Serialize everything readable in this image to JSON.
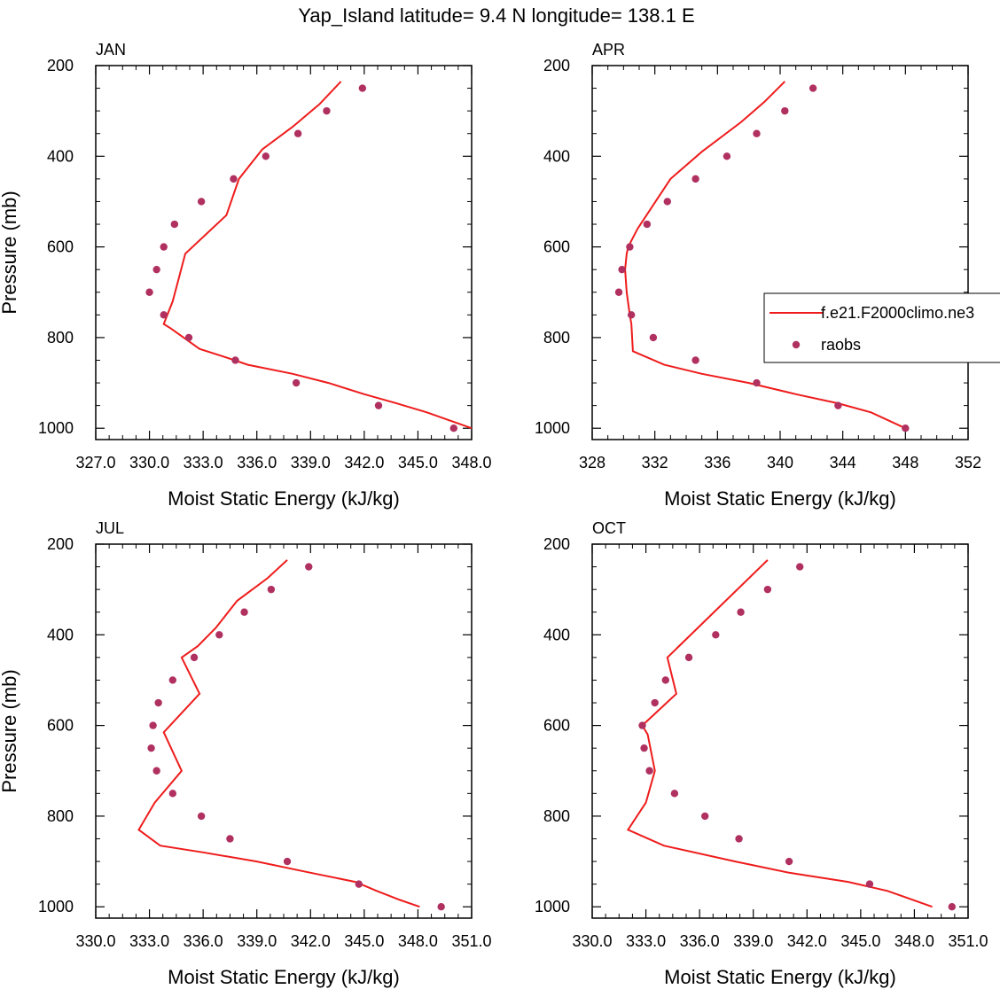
{
  "title": "Yap_Island  latitude= 9.4 N longitude= 138.1 E",
  "chart_data": [
    {
      "type": "line",
      "panel_label": "JAN",
      "xlabel": "Moist Static Energy (kJ/kg)",
      "ylabel": "Pressure (mb)",
      "xlim": [
        327,
        348
      ],
      "ylim": [
        200,
        1025
      ],
      "x_ticks": [
        "327.0",
        "330.0",
        "333.0",
        "336.0",
        "339.0",
        "342.0",
        "345.0",
        "348.0"
      ],
      "y_ticks": [
        "200",
        "400",
        "600",
        "800",
        "1000"
      ],
      "series": [
        {
          "name": "f.e21.F2000climo.ne3",
          "style": "line",
          "color": "#ee1c1c",
          "x": [
            348.0,
            345.5,
            343.8,
            342.0,
            340.0,
            338.0,
            335.5,
            334.0,
            332.8,
            331.2,
            330.8,
            331.3,
            331.6,
            332.0,
            334.3,
            335.0,
            336.3,
            338.0,
            339.5,
            340.7
          ],
          "y": [
            1000,
            965,
            945,
            925,
            900,
            880,
            860,
            840,
            825,
            780,
            770,
            720,
            675,
            615,
            530,
            450,
            385,
            335,
            285,
            235
          ]
        },
        {
          "name": "raobs",
          "style": "markers",
          "color": "#b03060",
          "x": [
            347.0,
            342.8,
            338.2,
            334.8,
            332.2,
            330.8,
            330.0,
            330.4,
            330.8,
            331.4,
            332.9,
            334.7,
            336.5,
            338.3,
            339.9,
            341.9
          ],
          "y": [
            1000,
            950,
            900,
            850,
            800,
            750,
            700,
            650,
            600,
            550,
            500,
            450,
            400,
            350,
            300,
            250
          ]
        }
      ]
    },
    {
      "type": "line",
      "panel_label": "APR",
      "xlabel": "Moist Static Energy (kJ/kg)",
      "ylabel": "",
      "xlim": [
        328,
        352
      ],
      "ylim": [
        200,
        1025
      ],
      "x_ticks": [
        "328",
        "332",
        "336",
        "340",
        "344",
        "348",
        "352"
      ],
      "y_ticks": [
        "200",
        "400",
        "600",
        "800",
        "1000"
      ],
      "series": [
        {
          "name": "f.e21.F2000climo.ne3",
          "style": "line",
          "color": "#ee1c1c",
          "x": [
            348.0,
            345.8,
            343.7,
            341.0,
            338.0,
            335.0,
            332.6,
            330.6,
            330.5,
            330.4,
            330.2,
            330.1,
            330.2,
            330.3,
            330.9,
            333.0,
            335.0,
            337.5,
            339.0,
            340.3
          ],
          "y": [
            1000,
            965,
            945,
            925,
            900,
            880,
            860,
            830,
            770,
            750,
            700,
            650,
            615,
            600,
            560,
            450,
            390,
            325,
            280,
            235
          ]
        },
        {
          "name": "raobs",
          "style": "markers",
          "color": "#b03060",
          "x": [
            348.0,
            343.7,
            338.5,
            334.6,
            331.9,
            330.5,
            329.7,
            329.9,
            330.4,
            331.5,
            332.8,
            334.6,
            336.6,
            338.5,
            340.3,
            342.1
          ],
          "y": [
            1000,
            950,
            900,
            850,
            800,
            750,
            700,
            650,
            600,
            550,
            500,
            450,
            400,
            350,
            300,
            250
          ]
        }
      ]
    },
    {
      "type": "line",
      "panel_label": "JUL",
      "xlabel": "Moist Static Energy (kJ/kg)",
      "ylabel": "Pressure (mb)",
      "xlim": [
        330,
        351
      ],
      "ylim": [
        200,
        1025
      ],
      "x_ticks": [
        "330.0",
        "333.0",
        "336.0",
        "339.0",
        "342.0",
        "345.0",
        "348.0",
        "351.0"
      ],
      "y_ticks": [
        "200",
        "400",
        "600",
        "800",
        "1000"
      ],
      "series": [
        {
          "name": "f.e21.F2000climo.ne3",
          "style": "line",
          "color": "#ee1c1c",
          "x": [
            348.1,
            347.0,
            345.7,
            344.5,
            342.0,
            339.0,
            336.0,
            333.6,
            332.4,
            333.3,
            334.8,
            333.8,
            335.8,
            334.8,
            335.7,
            336.7,
            337.9,
            339.6,
            340.7
          ],
          "y": [
            1000,
            985,
            965,
            945,
            925,
            900,
            880,
            865,
            830,
            770,
            700,
            615,
            530,
            450,
            425,
            385,
            325,
            275,
            235
          ]
        },
        {
          "name": "raobs",
          "style": "markers",
          "color": "#b03060",
          "x": [
            349.3,
            344.7,
            340.7,
            337.5,
            335.9,
            334.3,
            333.4,
            333.1,
            333.2,
            333.5,
            334.3,
            335.5,
            336.9,
            338.3,
            339.8,
            341.9
          ],
          "y": [
            1000,
            950,
            900,
            850,
            800,
            750,
            700,
            650,
            600,
            550,
            500,
            450,
            400,
            350,
            300,
            250
          ]
        }
      ]
    },
    {
      "type": "line",
      "panel_label": "OCT",
      "xlabel": "Moist Static Energy (kJ/kg)",
      "ylabel": "",
      "xlim": [
        330,
        351
      ],
      "ylim": [
        200,
        1025
      ],
      "x_ticks": [
        "330.0",
        "333.0",
        "336.0",
        "339.0",
        "342.0",
        "345.0",
        "348.0",
        "351.0"
      ],
      "y_ticks": [
        "200",
        "400",
        "600",
        "800",
        "1000"
      ],
      "series": [
        {
          "name": "f.e21.F2000climo.ne3",
          "style": "line",
          "color": "#ee1c1c",
          "x": [
            349.0,
            346.5,
            344.3,
            341.0,
            338.0,
            334.0,
            332.0,
            333.0,
            333.5,
            333.1,
            332.8,
            334.7,
            334.2,
            339.8
          ],
          "y": [
            1000,
            965,
            945,
            925,
            900,
            865,
            830,
            770,
            700,
            620,
            600,
            530,
            450,
            235
          ]
        },
        {
          "name": "raobs",
          "style": "markers",
          "color": "#b03060",
          "x": [
            350.1,
            345.5,
            341.0,
            338.2,
            336.3,
            334.6,
            333.2,
            332.9,
            332.8,
            333.5,
            334.1,
            335.4,
            336.9,
            338.3,
            339.8,
            341.6
          ],
          "y": [
            1000,
            950,
            900,
            850,
            800,
            750,
            700,
            650,
            600,
            550,
            500,
            450,
            400,
            350,
            300,
            250
          ]
        }
      ]
    }
  ],
  "legend": {
    "items": [
      {
        "label": "f.e21.F2000climo.ne3",
        "style": "line",
        "color": "#ee1c1c"
      },
      {
        "label": "raobs",
        "style": "marker",
        "color": "#b03060"
      }
    ]
  }
}
